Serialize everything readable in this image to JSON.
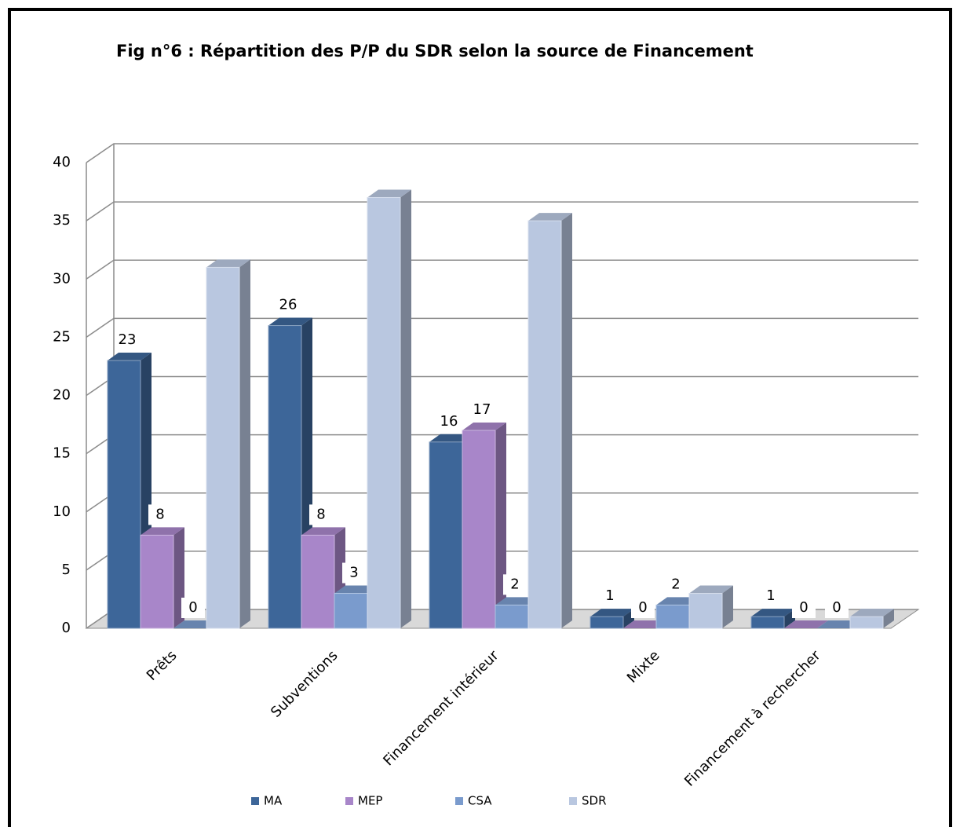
{
  "chart_data": {
    "type": "bar3d",
    "title": "Fig n°6 : Répartition des P/P du SDR selon la source de Financement",
    "categories": [
      "Prêts",
      "Subventions",
      "Financement intérieur",
      "Mixte",
      "Financement à rechercher"
    ],
    "series": [
      {
        "name": "MA",
        "color": "#3d6699",
        "values": [
          23,
          26,
          16,
          1,
          1
        ],
        "data_labels": true
      },
      {
        "name": "MEP",
        "color": "#a886c9",
        "values": [
          8,
          8,
          17,
          0,
          0
        ],
        "data_labels": true
      },
      {
        "name": "CSA",
        "color": "#7a9bcd",
        "values": [
          0,
          3,
          2,
          2,
          0
        ],
        "data_labels": true
      },
      {
        "name": "SDR",
        "color": "#b9c7e0",
        "values": [
          31,
          37,
          35,
          3,
          1
        ],
        "data_labels": false
      }
    ],
    "ylim": [
      0,
      40
    ],
    "yticks": [
      0,
      5,
      10,
      15,
      20,
      25,
      30,
      35,
      40
    ],
    "grid": true,
    "legend": "bottom"
  }
}
